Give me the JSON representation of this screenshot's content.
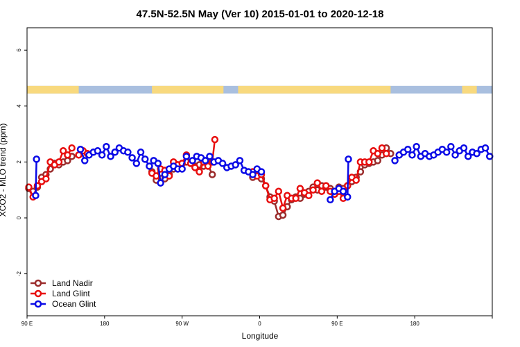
{
  "chart_data": {
    "type": "line",
    "title": "47.5N-52.5N May (Ver 10)   2015-01-01 to 2020-12-18",
    "xlabel": "Longitude",
    "ylabel": "XCO2 - MLO trend (ppm)",
    "xlim": [
      0,
      540
    ],
    "ylim": [
      -3.5,
      6.8
    ],
    "x_ticks": [
      {
        "x": 0,
        "label": "90 E"
      },
      {
        "x": 90,
        "label": "180"
      },
      {
        "x": 180,
        "label": "90 W"
      },
      {
        "x": 270,
        "label": "0"
      },
      {
        "x": 360,
        "label": "90 E"
      },
      {
        "x": 450,
        "label": "180"
      }
    ],
    "y_ticks": [
      {
        "y": -2,
        "label": "-2"
      },
      {
        "y": 0,
        "label": "0"
      },
      {
        "y": 2,
        "label": "2"
      },
      {
        "y": 4,
        "label": "4"
      },
      {
        "y": 6,
        "label": "6"
      }
    ],
    "grid": false,
    "legend_position": "bottom-left",
    "landmask": {
      "y_range": [
        4.45,
        4.72
      ],
      "land_color": "#f8d97e",
      "ocean_color": "#a9bfdf",
      "land_segments": [
        [
          0,
          60
        ],
        [
          145,
          228
        ],
        [
          245,
          422
        ],
        [
          505,
          522
        ]
      ]
    },
    "series": [
      {
        "name": "Land Nadir",
        "color": "#9b2c2c",
        "points": [
          [
            2,
            1.05
          ],
          [
            7,
            0.95
          ],
          [
            12,
            1.1
          ],
          [
            17,
            1.45
          ],
          [
            22,
            1.55
          ],
          [
            27,
            1.75
          ],
          [
            32,
            1.95
          ],
          [
            37,
            1.9
          ],
          [
            42,
            2.0
          ],
          [
            47,
            2.05
          ],
          [
            52,
            2.2
          ],
          [
            145,
            1.65
          ],
          [
            150,
            1.35
          ],
          [
            155,
            1.6
          ],
          [
            160,
            1.4
          ],
          [
            165,
            1.55
          ],
          [
            170,
            1.75
          ],
          [
            175,
            1.85
          ],
          [
            180,
            1.95
          ],
          [
            185,
            2.0
          ],
          [
            190,
            1.95
          ],
          [
            195,
            1.85
          ],
          [
            200,
            1.9
          ],
          [
            205,
            1.85
          ],
          [
            210,
            1.9
          ],
          [
            215,
            1.55
          ],
          [
            262,
            1.45
          ],
          [
            267,
            1.55
          ],
          [
            272,
            1.4
          ],
          [
            277,
            1.15
          ],
          [
            282,
            0.75
          ],
          [
            287,
            0.6
          ],
          [
            292,
            0.05
          ],
          [
            297,
            0.1
          ],
          [
            302,
            0.4
          ],
          [
            307,
            0.65
          ],
          [
            312,
            0.75
          ],
          [
            317,
            0.7
          ],
          [
            322,
            0.85
          ],
          [
            327,
            0.95
          ],
          [
            332,
            1.1
          ],
          [
            337,
            1.0
          ],
          [
            342,
            1.15
          ],
          [
            347,
            1.1
          ],
          [
            352,
            1.05
          ],
          [
            357,
            0.85
          ],
          [
            362,
            1.1
          ],
          [
            367,
            1.05
          ],
          [
            372,
            1.15
          ],
          [
            377,
            1.3
          ],
          [
            382,
            1.45
          ],
          [
            387,
            1.65
          ],
          [
            392,
            1.9
          ],
          [
            397,
            1.95
          ],
          [
            402,
            2.0
          ],
          [
            407,
            2.05
          ],
          [
            412,
            2.25
          ],
          [
            417,
            2.5
          ],
          [
            422,
            2.3
          ]
        ]
      },
      {
        "name": "Land Glint",
        "color": "#e80e0e",
        "points": [
          [
            2,
            1.1
          ],
          [
            7,
            0.75
          ],
          [
            12,
            1.15
          ],
          [
            17,
            1.3
          ],
          [
            22,
            1.4
          ],
          [
            27,
            2.0
          ],
          [
            32,
            1.9
          ],
          [
            37,
            2.0
          ],
          [
            42,
            2.4
          ],
          [
            47,
            2.25
          ],
          [
            52,
            2.5
          ],
          [
            60,
            2.25
          ],
          [
            65,
            2.4
          ],
          [
            70,
            2.3
          ],
          [
            145,
            1.6
          ],
          [
            150,
            1.5
          ],
          [
            155,
            1.75
          ],
          [
            160,
            1.7
          ],
          [
            165,
            1.5
          ],
          [
            170,
            2.0
          ],
          [
            175,
            1.9
          ],
          [
            180,
            1.95
          ],
          [
            185,
            2.25
          ],
          [
            190,
            1.95
          ],
          [
            195,
            1.8
          ],
          [
            200,
            1.65
          ],
          [
            205,
            2.0
          ],
          [
            210,
            1.85
          ],
          [
            215,
            2.0
          ],
          [
            218,
            2.8
          ],
          [
            262,
            1.65
          ],
          [
            267,
            1.5
          ],
          [
            272,
            1.55
          ],
          [
            277,
            1.15
          ],
          [
            282,
            0.65
          ],
          [
            287,
            0.7
          ],
          [
            292,
            0.95
          ],
          [
            297,
            0.35
          ],
          [
            302,
            0.8
          ],
          [
            307,
            0.7
          ],
          [
            312,
            0.7
          ],
          [
            317,
            1.05
          ],
          [
            322,
            0.9
          ],
          [
            327,
            0.8
          ],
          [
            332,
            1.0
          ],
          [
            337,
            1.25
          ],
          [
            342,
            0.95
          ],
          [
            347,
            1.15
          ],
          [
            352,
            0.95
          ],
          [
            357,
            0.85
          ],
          [
            362,
            0.95
          ],
          [
            367,
            0.7
          ],
          [
            372,
            1.15
          ],
          [
            377,
            1.45
          ],
          [
            382,
            1.35
          ],
          [
            387,
            2.0
          ],
          [
            392,
            2.0
          ],
          [
            397,
            2.0
          ],
          [
            402,
            2.4
          ],
          [
            407,
            2.3
          ],
          [
            412,
            2.5
          ],
          [
            417,
            2.3
          ],
          [
            432,
            2.25
          ]
        ]
      },
      {
        "name": "Ocean Glint",
        "color": "#0a0ae6",
        "points": [
          [
            10,
            0.8
          ],
          [
            11,
            2.1
          ],
          [
            62,
            2.45
          ],
          [
            67,
            2.05
          ],
          [
            72,
            2.25
          ],
          [
            77,
            2.35
          ],
          [
            82,
            2.4
          ],
          [
            87,
            2.25
          ],
          [
            92,
            2.55
          ],
          [
            97,
            2.2
          ],
          [
            102,
            2.35
          ],
          [
            107,
            2.5
          ],
          [
            112,
            2.4
          ],
          [
            117,
            2.35
          ],
          [
            122,
            2.15
          ],
          [
            127,
            1.95
          ],
          [
            132,
            2.35
          ],
          [
            137,
            2.1
          ],
          [
            142,
            1.85
          ],
          [
            147,
            2.05
          ],
          [
            152,
            1.95
          ],
          [
            155,
            1.25
          ],
          [
            160,
            1.55
          ],
          [
            165,
            1.75
          ],
          [
            170,
            1.85
          ],
          [
            175,
            1.75
          ],
          [
            180,
            1.75
          ],
          [
            185,
            2.2
          ],
          [
            192,
            2.05
          ],
          [
            197,
            2.2
          ],
          [
            202,
            2.15
          ],
          [
            207,
            2.05
          ],
          [
            212,
            2.2
          ],
          [
            217,
            2.0
          ],
          [
            222,
            2.05
          ],
          [
            227,
            1.95
          ],
          [
            232,
            1.8
          ],
          [
            237,
            1.85
          ],
          [
            242,
            1.9
          ],
          [
            247,
            2.05
          ],
          [
            252,
            1.7
          ],
          [
            257,
            1.65
          ],
          [
            262,
            1.55
          ],
          [
            267,
            1.75
          ],
          [
            272,
            1.65
          ],
          [
            352,
            0.65
          ],
          [
            357,
            0.95
          ],
          [
            362,
            1.05
          ],
          [
            367,
            0.95
          ],
          [
            372,
            0.75
          ],
          [
            373,
            2.1
          ],
          [
            427,
            2.05
          ],
          [
            432,
            2.25
          ],
          [
            437,
            2.35
          ],
          [
            442,
            2.45
          ],
          [
            447,
            2.25
          ],
          [
            452,
            2.55
          ],
          [
            457,
            2.2
          ],
          [
            462,
            2.3
          ],
          [
            467,
            2.2
          ],
          [
            472,
            2.25
          ],
          [
            477,
            2.35
          ],
          [
            482,
            2.45
          ],
          [
            487,
            2.35
          ],
          [
            492,
            2.55
          ],
          [
            497,
            2.25
          ],
          [
            502,
            2.4
          ],
          [
            507,
            2.5
          ],
          [
            512,
            2.2
          ],
          [
            517,
            2.35
          ],
          [
            522,
            2.3
          ],
          [
            527,
            2.45
          ],
          [
            532,
            2.5
          ],
          [
            537,
            2.2
          ]
        ]
      }
    ]
  }
}
